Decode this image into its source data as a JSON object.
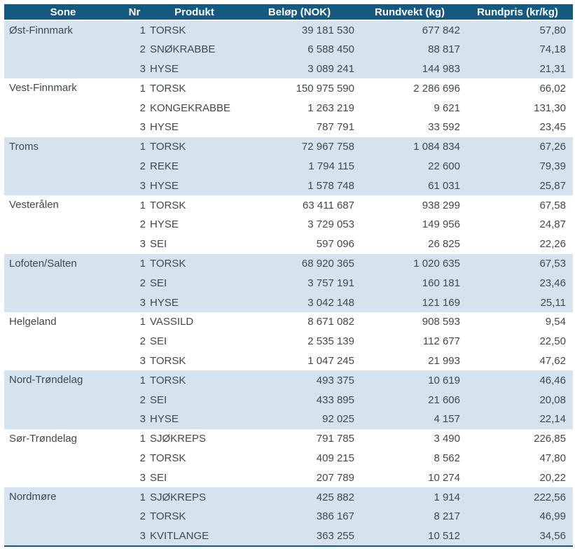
{
  "colors": {
    "header_bg": "#155880",
    "band_bg": "#d5e3ee",
    "text": "#414851",
    "border": "#155880",
    "header_text": "#ffffff"
  },
  "chart_data": {
    "type": "table",
    "columns": [
      "Sone",
      "Nr",
      "Produkt",
      "Beløp (NOK)",
      "Rundvekt (kg)",
      "Rundpris (kr/kg)"
    ],
    "groups": [
      {
        "sone": "Øst-Finnmark",
        "rows": [
          {
            "nr": "1",
            "produkt": "TORSK",
            "belop": "39 181 530",
            "rundvekt": "677 842",
            "rundpris": "57,80"
          },
          {
            "nr": "2",
            "produkt": "SNØKRABBE",
            "belop": "6 588 450",
            "rundvekt": "88 817",
            "rundpris": "74,18"
          },
          {
            "nr": "3",
            "produkt": "HYSE",
            "belop": "3 089 241",
            "rundvekt": "144 983",
            "rundpris": "21,31"
          }
        ]
      },
      {
        "sone": "Vest-Finnmark",
        "rows": [
          {
            "nr": "1",
            "produkt": "TORSK",
            "belop": "150 975 590",
            "rundvekt": "2 286 696",
            "rundpris": "66,02"
          },
          {
            "nr": "2",
            "produkt": "KONGEKRABBE",
            "belop": "1 263 219",
            "rundvekt": "9 621",
            "rundpris": "131,30"
          },
          {
            "nr": "3",
            "produkt": "HYSE",
            "belop": "787 791",
            "rundvekt": "33 592",
            "rundpris": "23,45"
          }
        ]
      },
      {
        "sone": "Troms",
        "rows": [
          {
            "nr": "1",
            "produkt": "TORSK",
            "belop": "72 967 758",
            "rundvekt": "1 084 834",
            "rundpris": "67,26"
          },
          {
            "nr": "2",
            "produkt": "REKE",
            "belop": "1 794 115",
            "rundvekt": "22 600",
            "rundpris": "79,39"
          },
          {
            "nr": "3",
            "produkt": "HYSE",
            "belop": "1 578 748",
            "rundvekt": "61 031",
            "rundpris": "25,87"
          }
        ]
      },
      {
        "sone": "Vesterålen",
        "rows": [
          {
            "nr": "1",
            "produkt": "TORSK",
            "belop": "63 411 687",
            "rundvekt": "938 299",
            "rundpris": "67,58"
          },
          {
            "nr": "2",
            "produkt": "HYSE",
            "belop": "3 729 053",
            "rundvekt": "149 956",
            "rundpris": "24,87"
          },
          {
            "nr": "3",
            "produkt": "SEI",
            "belop": "597 096",
            "rundvekt": "26 825",
            "rundpris": "22,26"
          }
        ]
      },
      {
        "sone": "Lofoten/Salten",
        "rows": [
          {
            "nr": "1",
            "produkt": "TORSK",
            "belop": "68 920 365",
            "rundvekt": "1 020 635",
            "rundpris": "67,53"
          },
          {
            "nr": "2",
            "produkt": "SEI",
            "belop": "3 757 191",
            "rundvekt": "160 181",
            "rundpris": "23,46"
          },
          {
            "nr": "3",
            "produkt": "HYSE",
            "belop": "3 042 148",
            "rundvekt": "121 169",
            "rundpris": "25,11"
          }
        ]
      },
      {
        "sone": "Helgeland",
        "rows": [
          {
            "nr": "1",
            "produkt": "VASSILD",
            "belop": "8 671 082",
            "rundvekt": "908 593",
            "rundpris": "9,54"
          },
          {
            "nr": "2",
            "produkt": "SEI",
            "belop": "2 535 139",
            "rundvekt": "112 677",
            "rundpris": "22,50"
          },
          {
            "nr": "3",
            "produkt": "TORSK",
            "belop": "1 047 245",
            "rundvekt": "21 993",
            "rundpris": "47,62"
          }
        ]
      },
      {
        "sone": "Nord-Trøndelag",
        "rows": [
          {
            "nr": "1",
            "produkt": "TORSK",
            "belop": "493 375",
            "rundvekt": "10 619",
            "rundpris": "46,46"
          },
          {
            "nr": "2",
            "produkt": "SEI",
            "belop": "433 895",
            "rundvekt": "21 606",
            "rundpris": "20,08"
          },
          {
            "nr": "3",
            "produkt": "HYSE",
            "belop": "92 025",
            "rundvekt": "4 157",
            "rundpris": "22,14"
          }
        ]
      },
      {
        "sone": "Sør-Trøndelag",
        "rows": [
          {
            "nr": "1",
            "produkt": "SJØKREPS",
            "belop": "791 785",
            "rundvekt": "3 490",
            "rundpris": "226,85"
          },
          {
            "nr": "2",
            "produkt": "TORSK",
            "belop": "409 215",
            "rundvekt": "8 562",
            "rundpris": "47,80"
          },
          {
            "nr": "3",
            "produkt": "SEI",
            "belop": "207 789",
            "rundvekt": "10 274",
            "rundpris": "20,22"
          }
        ]
      },
      {
        "sone": "Nordmøre",
        "rows": [
          {
            "nr": "1",
            "produkt": "SJØKREPS",
            "belop": "425 882",
            "rundvekt": "1 914",
            "rundpris": "222,56"
          },
          {
            "nr": "2",
            "produkt": "TORSK",
            "belop": "386 167",
            "rundvekt": "8 217",
            "rundpris": "46,99"
          },
          {
            "nr": "3",
            "produkt": "KVITLANGE",
            "belop": "363 255",
            "rundvekt": "10 512",
            "rundpris": "34,56"
          }
        ]
      }
    ]
  }
}
